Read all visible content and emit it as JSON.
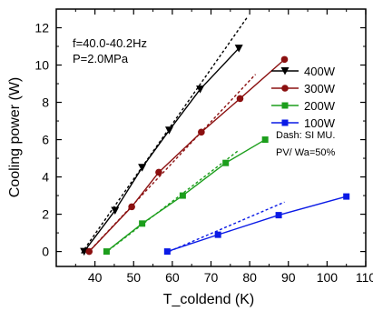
{
  "chart_data": {
    "type": "line",
    "xlabel": "T_coldend (K)",
    "ylabel": "Cooling power (W)",
    "xlim": [
      30,
      110
    ],
    "ylim": [
      -0.8,
      13
    ],
    "x_ticks": [
      40,
      50,
      60,
      70,
      80,
      90,
      100,
      110
    ],
    "y_ticks": [
      0,
      2,
      4,
      6,
      8,
      10,
      12
    ],
    "grid": false,
    "legend_position": "right",
    "annotations": [
      {
        "text": "f=40.0-40.2Hz"
      },
      {
        "text": "P=2.0MPa"
      }
    ],
    "legend_notes": [
      {
        "text": "Dash:  SI MU."
      },
      {
        "text": "PV/ Wa=50%"
      }
    ],
    "series": [
      {
        "name": "400W",
        "color": "#000000",
        "marker": "triangle-down",
        "x": [
          37.2,
          45.2,
          52.2,
          59.2,
          67.2,
          77.2
        ],
        "y": [
          0.0,
          2.2,
          4.5,
          6.5,
          8.7,
          10.9
        ],
        "sim_x": [
          36.5,
          79.5
        ],
        "sim_y": [
          -0.1,
          12.6
        ]
      },
      {
        "name": "300W",
        "color": "#8b1010",
        "marker": "circle",
        "x": [
          38.5,
          49.5,
          56.5,
          67.5,
          77.5,
          89.0
        ],
        "y": [
          0.0,
          2.4,
          4.25,
          6.4,
          8.2,
          10.3
        ],
        "sim_x": [
          38.0,
          81.5
        ],
        "sim_y": [
          -0.1,
          9.5
        ]
      },
      {
        "name": "200W",
        "color": "#1c9e1c",
        "marker": "square",
        "x": [
          43.0,
          52.2,
          62.7,
          73.8,
          84.0
        ],
        "y": [
          0.0,
          1.5,
          3.0,
          4.75,
          6.0
        ],
        "sim_x": [
          42.5,
          77.0
        ],
        "sim_y": [
          -0.1,
          5.4
        ]
      },
      {
        "name": "100W",
        "color": "#0a1ae6",
        "marker": "square",
        "x": [
          58.7,
          71.8,
          87.5,
          105.0
        ],
        "y": [
          0.0,
          0.9,
          1.95,
          2.95
        ],
        "sim_x": [
          58.0,
          89.0
        ],
        "sim_y": [
          -0.1,
          2.65
        ]
      }
    ]
  }
}
